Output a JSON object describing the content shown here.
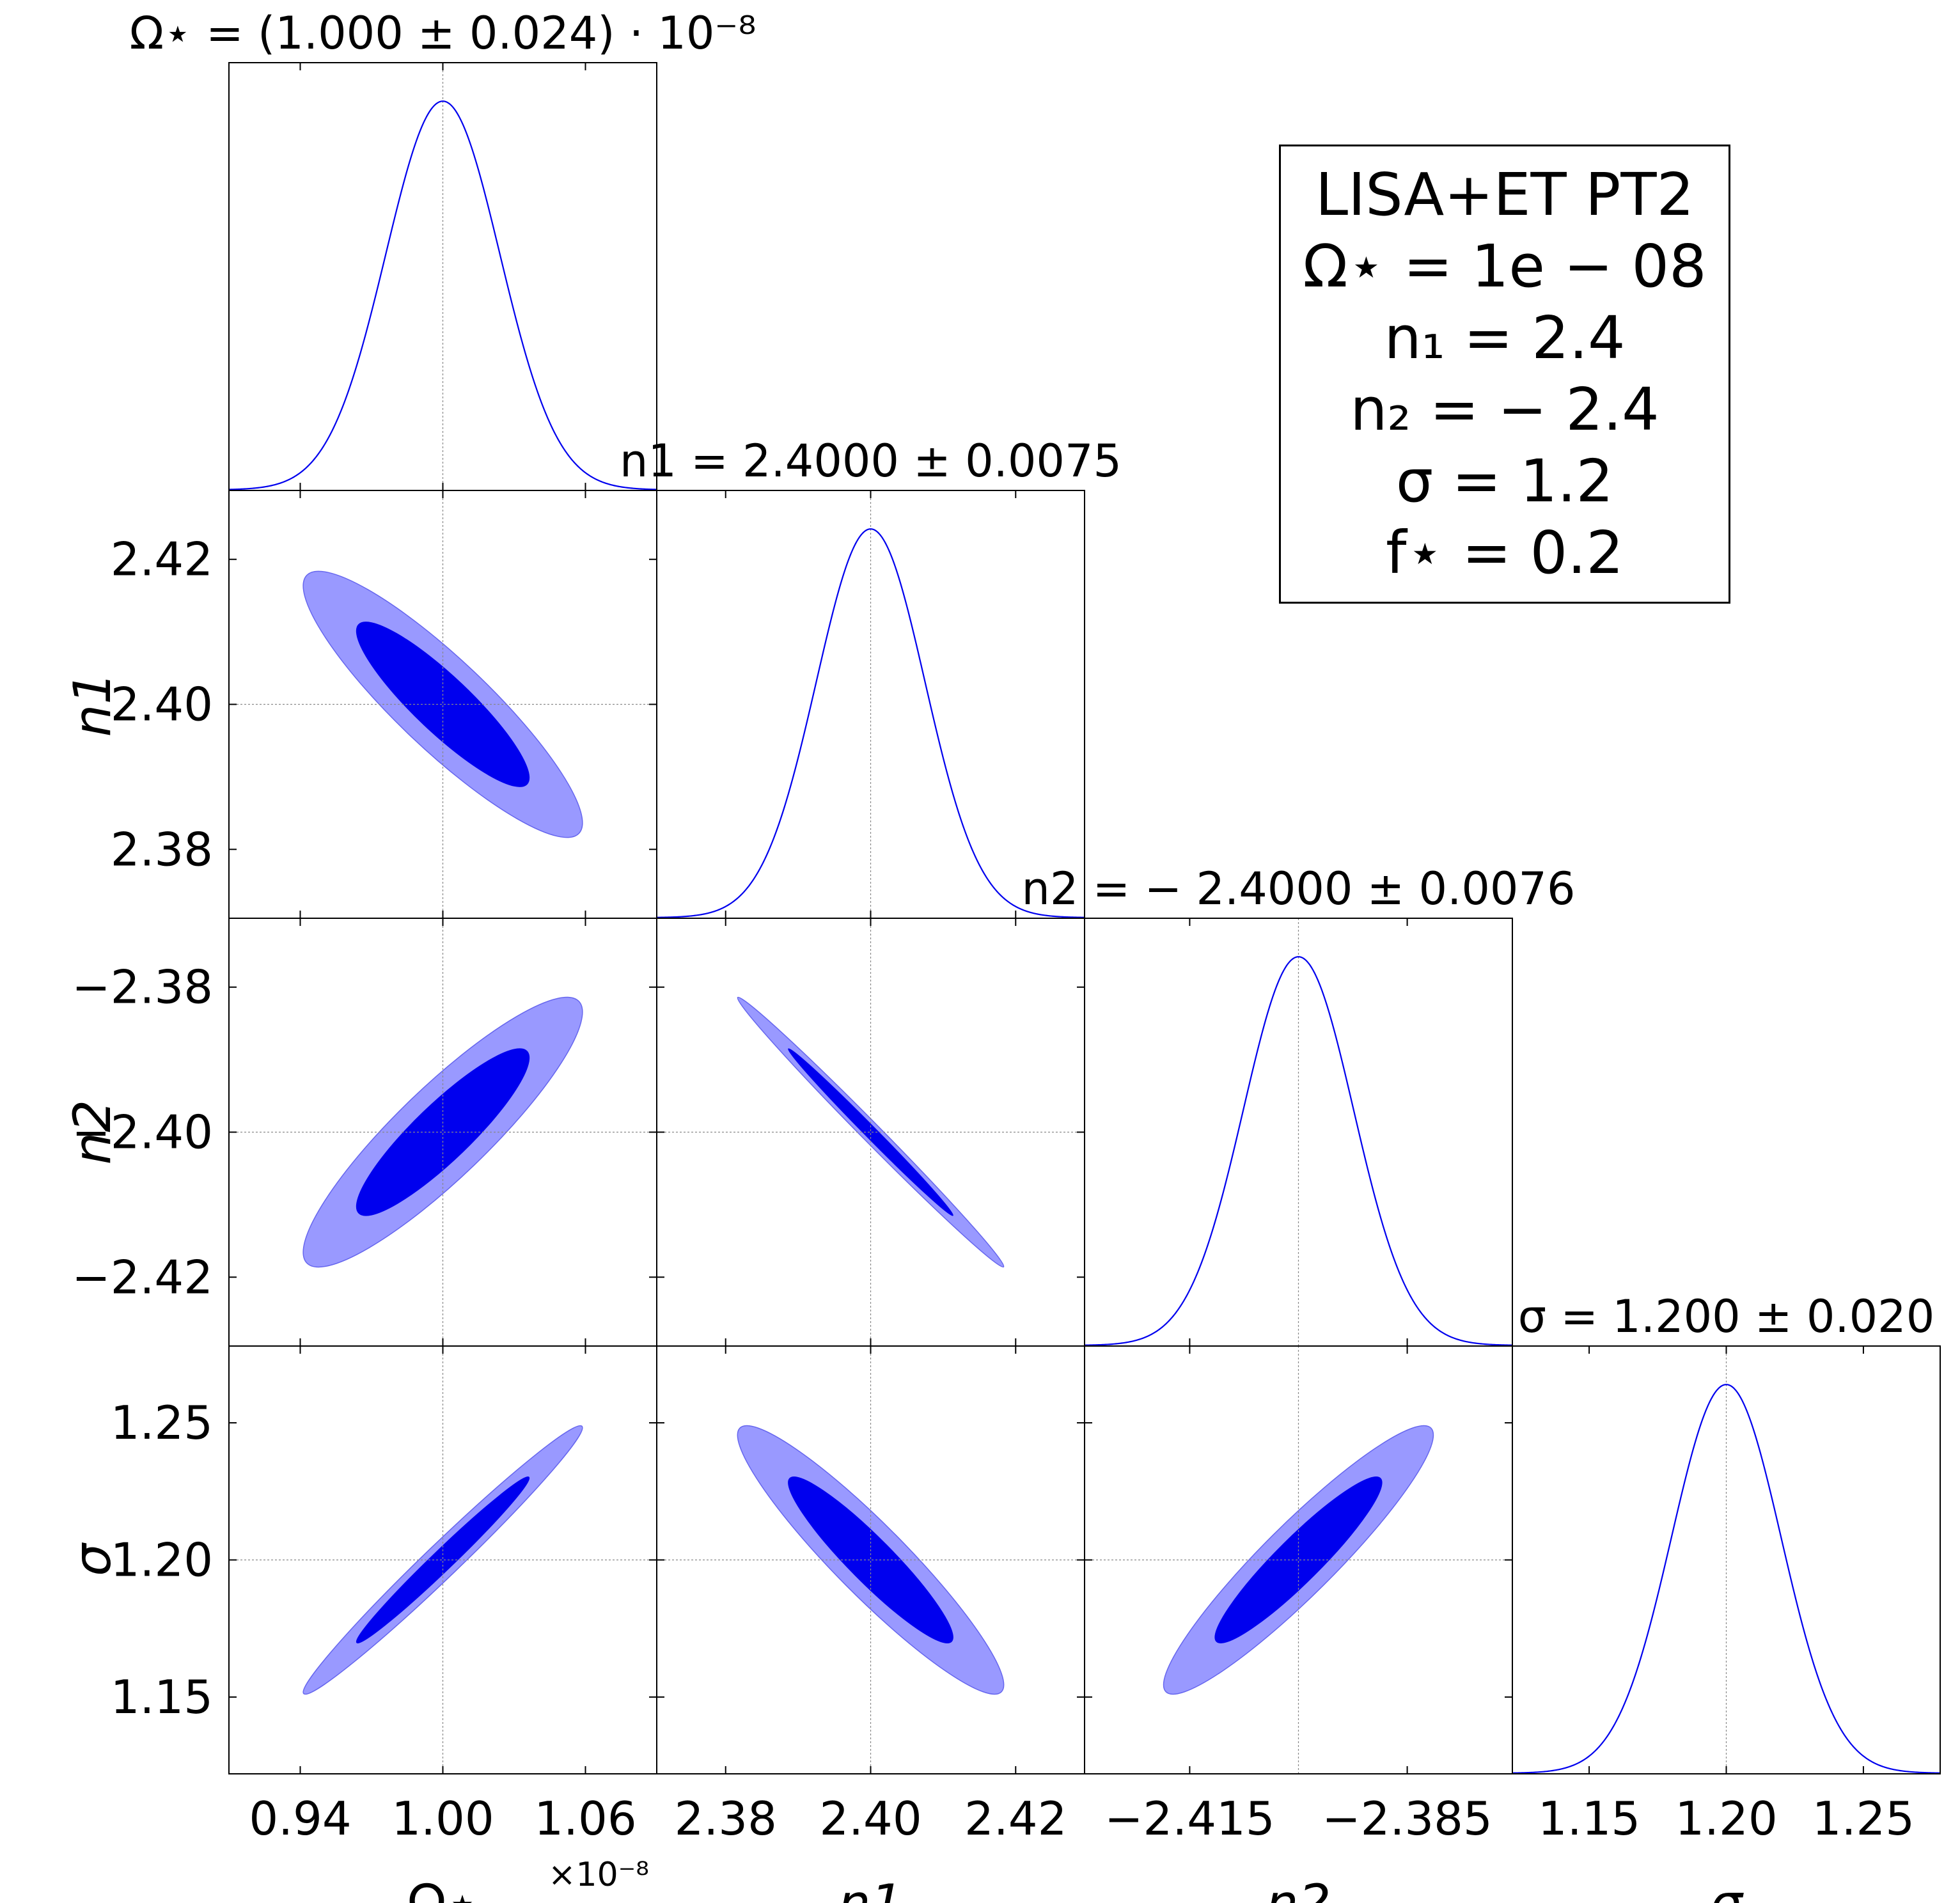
{
  "chart_data": {
    "type": "corner",
    "parameters": [
      {
        "key": "omega",
        "axis_label": "Ω⋆",
        "title": "Ω⋆ = (1.000 ± 0.024) · 10⁻⁸",
        "mean": 1.0,
        "sigma": 0.024,
        "xlim": [
          0.91,
          1.09
        ],
        "ticks": [
          0.94,
          1.0,
          1.06
        ],
        "tick_labels": [
          "0.94",
          "1.00",
          "1.06"
        ],
        "offset_label": "×10⁻⁸"
      },
      {
        "key": "n1",
        "axis_label": "n1",
        "title": "n1 = 2.4000 ± 0.0075",
        "mean": 2.4,
        "sigma": 0.0075,
        "xlim": [
          2.3705,
          2.4295
        ],
        "ticks": [
          2.38,
          2.4,
          2.42
        ],
        "tick_labels": [
          "2.38",
          "2.40",
          "2.42"
        ]
      },
      {
        "key": "n2",
        "axis_label": "n2",
        "title": "n2 = − 2.4000 ± 0.0076",
        "mean": -2.4,
        "sigma": 0.0076,
        "xlim": [
          -2.4295,
          -2.3705
        ],
        "ticks": [
          -2.415,
          -2.385
        ],
        "tick_labels": [
          "−2.415",
          "−2.385"
        ],
        "yticks": [
          -2.42,
          -2.4,
          -2.38
        ],
        "ytick_labels": [
          "−2.42",
          "−2.40",
          "−2.38"
        ]
      },
      {
        "key": "sigma",
        "axis_label": "σ",
        "title": "σ = 1.200 ± 0.020",
        "mean": 1.2,
        "sigma": 0.02,
        "xlim": [
          1.122,
          1.278
        ],
        "ticks": [
          1.15,
          1.2,
          1.25
        ],
        "tick_labels": [
          "1.15",
          "1.20",
          "1.25"
        ]
      }
    ],
    "correlations": {
      "n1|omega": -0.89,
      "n2|omega": 0.89,
      "n2|n1": -0.995,
      "sigma|omega": 0.985,
      "sigma|n1": -0.93,
      "sigma|n2": 0.93
    },
    "contour_levels": [
      "1σ",
      "2σ"
    ],
    "colors": {
      "line": "#0000ee",
      "inner": "#0000ee",
      "outer": "#9999ff",
      "outer_edge": "#6666ee",
      "grid": "#888888"
    },
    "legend": {
      "lines": [
        "LISA+ET PT2",
        "Ω⋆ = 1e − 08",
        "n₁ = 2.4",
        "n₂ = − 2.4",
        "σ = 1.2",
        "f⋆ = 0.2"
      ]
    }
  }
}
